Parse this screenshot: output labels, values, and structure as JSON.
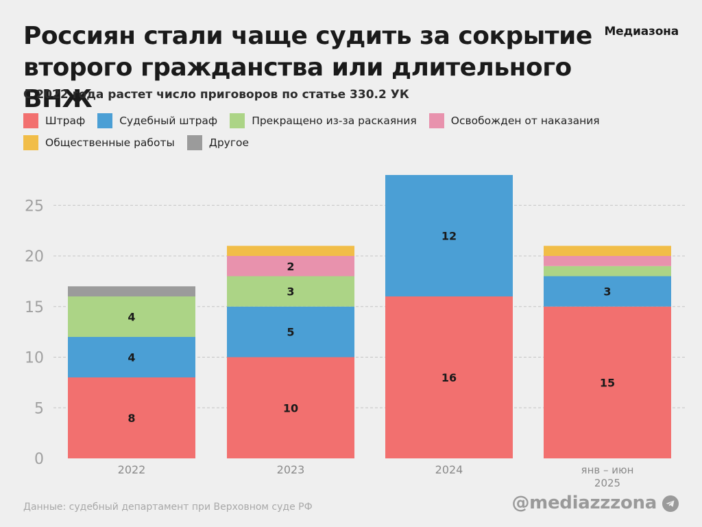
{
  "header": {
    "title": "Россиян стали чаще судить за сокрытие второго гражданства или длительного ВНЖ",
    "subtitle": "С 2022 года растет число приговоров по статье 330.2 УК",
    "brand": "Медиазона"
  },
  "footer": {
    "source": "Данные: судебный департамент при Верховном суде РФ",
    "handle": "@mediazzzona",
    "telegram_icon": "telegram-icon"
  },
  "chart_data": {
    "type": "bar",
    "stacked": true,
    "categories": [
      "2022",
      "2023",
      "2024",
      "янв – июн 2025"
    ],
    "category_lines": [
      [
        "2022"
      ],
      [
        "2023"
      ],
      [
        "2024"
      ],
      [
        "янв – июн",
        "2025"
      ]
    ],
    "ylim": [
      0,
      28
    ],
    "yticks": [
      0,
      5,
      10,
      15,
      20,
      25
    ],
    "grid": true,
    "legend_position": "top-left",
    "series": [
      {
        "name": "Штраф",
        "color": "#f2706f",
        "values": [
          8,
          10,
          16,
          15
        ],
        "labels": [
          "8",
          "10",
          "16",
          "15"
        ]
      },
      {
        "name": "Судебный штраф",
        "color": "#4b9fd5",
        "values": [
          4,
          5,
          12,
          3
        ],
        "labels": [
          "4",
          "5",
          "12",
          "3"
        ]
      },
      {
        "name": "Прекращено из-за раскаяния",
        "color": "#acd486",
        "values": [
          4,
          3,
          0,
          1
        ],
        "labels": [
          "4",
          "3",
          "",
          ""
        ]
      },
      {
        "name": "Освобожден от наказания",
        "color": "#e892ad",
        "values": [
          0,
          2,
          0,
          1
        ],
        "labels": [
          "",
          "2",
          "",
          ""
        ]
      },
      {
        "name": "Общественные работы",
        "color": "#f1bd48",
        "values": [
          0,
          1,
          0,
          1
        ],
        "labels": [
          "",
          "",
          "",
          ""
        ]
      },
      {
        "name": "Другое",
        "color": "#9b9b9b",
        "values": [
          1,
          0,
          0,
          0
        ],
        "labels": [
          "",
          "",
          "",
          ""
        ]
      }
    ]
  }
}
